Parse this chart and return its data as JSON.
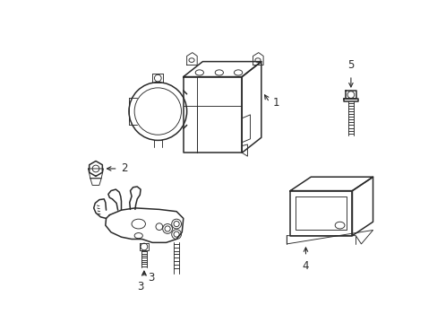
{
  "background_color": "#ffffff",
  "line_color": "#2a2a2a",
  "lw_main": 1.1,
  "lw_thin": 0.65,
  "fig_width": 4.89,
  "fig_height": 3.6,
  "dpi": 100,
  "label_fontsize": 8.5
}
